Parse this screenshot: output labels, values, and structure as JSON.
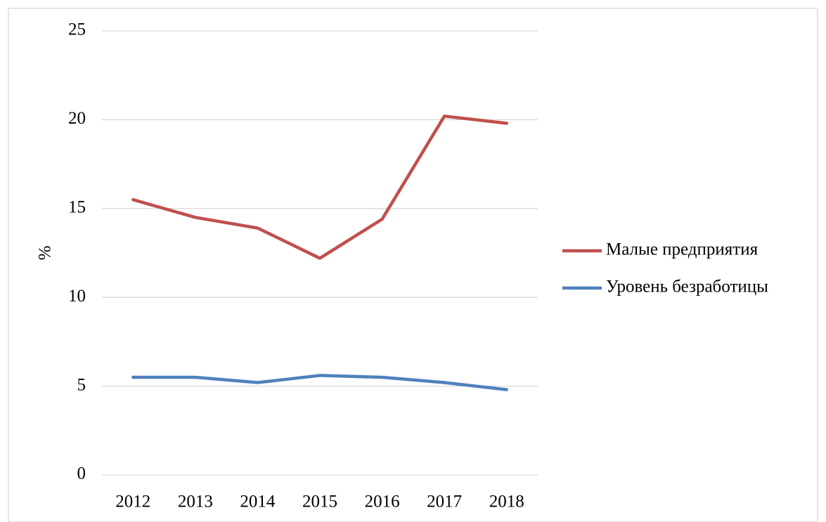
{
  "chart_data": {
    "type": "line",
    "y_label": "%",
    "categories": [
      "2012",
      "2013",
      "2014",
      "2015",
      "2016",
      "2017",
      "2018"
    ],
    "series": [
      {
        "name": "Малые предприятия",
        "color": "#c0504d",
        "values": [
          15.5,
          14.5,
          13.9,
          12.2,
          14.4,
          20.2,
          19.8
        ]
      },
      {
        "name": "Уровень безработицы",
        "color": "#4f81bd",
        "values": [
          5.5,
          5.5,
          5.2,
          5.6,
          5.5,
          5.2,
          4.8
        ]
      }
    ],
    "ylim": [
      0,
      25
    ],
    "yticks": [
      0,
      5,
      10,
      15,
      20,
      25
    ],
    "grid": true,
    "legend": "right"
  }
}
